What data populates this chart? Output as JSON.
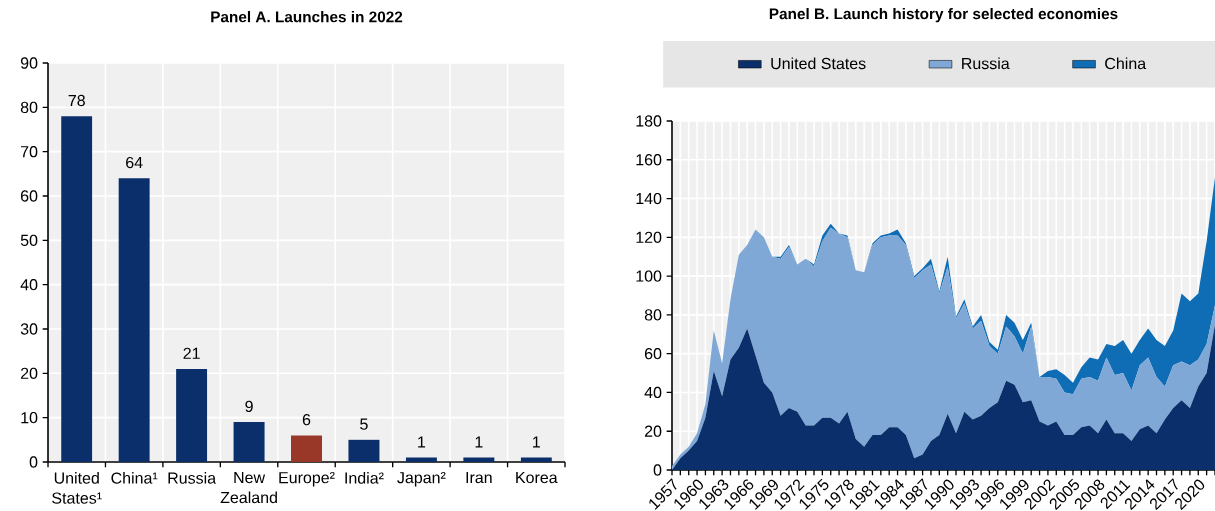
{
  "chart_data": [
    {
      "type": "bar",
      "title": "Panel A. Launches in 2022",
      "categories": [
        "United States¹",
        "China¹",
        "Russia",
        "New Zealand",
        "Europe²",
        "India²",
        "Japan²",
        "Iran",
        "Korea"
      ],
      "values": [
        78,
        64,
        21,
        9,
        6,
        5,
        1,
        1,
        1
      ],
      "colors": [
        "#0b2f6a",
        "#0b2f6a",
        "#0b2f6a",
        "#0b2f6a",
        "#993828",
        "#0b2f6a",
        "#0b2f6a",
        "#0b2f6a",
        "#0b2f6a"
      ],
      "ylim": [
        0,
        90
      ],
      "yticks": [
        0,
        10,
        20,
        30,
        40,
        50,
        60,
        70,
        80,
        90
      ],
      "grid": true,
      "data_labels": true
    },
    {
      "type": "area",
      "title": "Panel B. Launch history for selected economies",
      "stacked": true,
      "legend": "top",
      "grid": true,
      "x": [
        1957,
        1958,
        1959,
        1960,
        1961,
        1962,
        1963,
        1964,
        1965,
        1966,
        1967,
        1968,
        1969,
        1970,
        1971,
        1972,
        1973,
        1974,
        1975,
        1976,
        1977,
        1978,
        1979,
        1980,
        1981,
        1982,
        1983,
        1984,
        1985,
        1986,
        1987,
        1988,
        1989,
        1990,
        1991,
        1992,
        1993,
        1994,
        1995,
        1996,
        1997,
        1998,
        1999,
        2000,
        2001,
        2002,
        2003,
        2004,
        2005,
        2006,
        2007,
        2008,
        2009,
        2010,
        2011,
        2012,
        2013,
        2014,
        2015,
        2016,
        2017,
        2018,
        2019,
        2020,
        2021,
        2022
      ],
      "series": [
        {
          "name": "United States",
          "color": "#0b2f6a",
          "values": [
            0,
            6,
            10,
            15,
            27,
            51,
            38,
            57,
            63,
            73,
            59,
            45,
            40,
            28,
            32,
            30,
            23,
            23,
            27,
            27,
            24,
            30,
            16,
            12,
            18,
            18,
            22,
            22,
            18,
            6,
            8,
            15,
            18,
            29,
            19,
            30,
            26,
            28,
            32,
            35,
            46,
            44,
            35,
            36,
            25,
            23,
            25,
            18,
            18,
            22,
            23,
            19,
            26,
            19,
            19,
            15,
            21,
            23,
            19,
            26,
            32,
            36,
            32,
            43,
            50,
            75
          ]
        },
        {
          "name": "Russia",
          "color": "#7fa8d6",
          "values": [
            2,
            2,
            2,
            4,
            7,
            21,
            17,
            31,
            48,
            43,
            65,
            75,
            70,
            81,
            83,
            76,
            86,
            82,
            91,
            98,
            98,
            90,
            87,
            90,
            98,
            102,
            99,
            99,
            98,
            93,
            95,
            91,
            73,
            76,
            59,
            56,
            47,
            49,
            32,
            25,
            28,
            25,
            25,
            38,
            23,
            25,
            22,
            22,
            21,
            25,
            25,
            27,
            32,
            30,
            31,
            26,
            33,
            35,
            29,
            17,
            22,
            20,
            22,
            14,
            15,
            10
          ]
        },
        {
          "name": "China",
          "color": "#0f6db5",
          "values": [
            0,
            0,
            0,
            0,
            0,
            0,
            0,
            0,
            0,
            0,
            0,
            0,
            0,
            1,
            1,
            0,
            0,
            1,
            3,
            2,
            0,
            1,
            0,
            0,
            1,
            1,
            1,
            3,
            1,
            1,
            1,
            3,
            1,
            5,
            1,
            2,
            1,
            3,
            2,
            2,
            6,
            7,
            7,
            2,
            0,
            3,
            5,
            9,
            6,
            6,
            10,
            11,
            7,
            15,
            17,
            19,
            13,
            15,
            19,
            21,
            18,
            35,
            33,
            34,
            53,
            66
          ]
        }
      ],
      "xlim": [
        1957,
        2022
      ],
      "xticks": [
        1957,
        {
          "value": 1958,
          "label": null
        },
        {
          "value": 1959,
          "label": null
        },
        1960,
        {
          "value": 1961,
          "label": null
        },
        {
          "value": 1962,
          "label": null
        },
        1963,
        {
          "value": 1964,
          "label": null
        },
        {
          "value": 1965,
          "label": null
        },
        1966,
        {
          "value": 1967,
          "label": null
        },
        {
          "value": 1968,
          "label": null
        },
        1969,
        {
          "value": 1970,
          "label": null
        },
        {
          "value": 1971,
          "label": null
        },
        1972,
        {
          "value": 1973,
          "label": null
        },
        {
          "value": 1974,
          "label": null
        },
        1975,
        {
          "value": 1976,
          "label": null
        },
        {
          "value": 1977,
          "label": null
        },
        1978,
        {
          "value": 1979,
          "label": null
        },
        {
          "value": 1980,
          "label": null
        },
        1981,
        {
          "value": 1982,
          "label": null
        },
        {
          "value": 1983,
          "label": null
        },
        1984,
        {
          "value": 1985,
          "label": null
        },
        {
          "value": 1986,
          "label": null
        },
        1987,
        {
          "value": 1988,
          "label": null
        },
        {
          "value": 1989,
          "label": null
        },
        1990,
        {
          "value": 1991,
          "label": null
        },
        {
          "value": 1992,
          "label": null
        },
        1993,
        {
          "value": 1994,
          "label": null
        },
        {
          "value": 1995,
          "label": null
        },
        1996,
        {
          "value": 1997,
          "label": null
        },
        {
          "value": 1998,
          "label": null
        },
        1999,
        {
          "value": 2000,
          "label": null
        },
        {
          "value": 2001,
          "label": null
        },
        2002,
        {
          "value": 2003,
          "label": null
        },
        {
          "value": 2004,
          "label": null
        },
        2005,
        {
          "value": 2006,
          "label": null
        },
        {
          "value": 2007,
          "label": null
        },
        2008,
        {
          "value": 2009,
          "label": null
        },
        {
          "value": 2010,
          "label": null
        },
        2011,
        {
          "value": 2012,
          "label": null
        },
        {
          "value": 2013,
          "label": null
        },
        2014,
        {
          "value": 2015,
          "label": null
        },
        {
          "value": 2016,
          "label": null
        },
        2017,
        {
          "value": 2018,
          "label": null
        },
        {
          "value": 2019,
          "label": null
        },
        2020,
        {
          "value": 2021,
          "label": null
        },
        {
          "value": 2022,
          "label": null
        }
      ],
      "ylim": [
        0,
        180
      ],
      "yticks": [
        0,
        20,
        40,
        60,
        80,
        100,
        120,
        140,
        160,
        180
      ]
    }
  ]
}
